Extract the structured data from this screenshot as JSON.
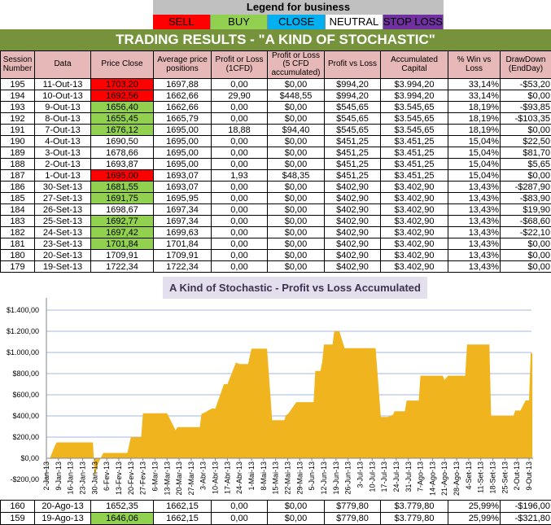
{
  "legend": {
    "title": "Legend for business",
    "items": [
      {
        "label": "SELL",
        "color": "#ff0000"
      },
      {
        "label": "BUY",
        "color": "#92d050"
      },
      {
        "label": "CLOSE",
        "color": "#00b0f0"
      },
      {
        "label": "NEUTRAL",
        "color": "#ffffff"
      },
      {
        "label": "STOP LOSS",
        "color": "#7030a0"
      }
    ]
  },
  "title": "TRADING RESULTS - \"A KIND OF STOCHASTIC\"",
  "columns": [
    "Session Number",
    "Data",
    "Price Close",
    "Average price positions",
    "Profit or Loss (1CFD)",
    "Profit or Loss (5 CFD accumulated)",
    "Profit vs Loss",
    "Accumulated Capital",
    "% Win vs Loss",
    "DrawDown (EndDay)"
  ],
  "rows": [
    [
      "195",
      "11-Out-13",
      "1703,20",
      "1697,88",
      "0,00",
      "$0,00",
      "$994,20",
      "$3.994,20",
      "33,14%",
      "-$53,20",
      "sell"
    ],
    [
      "194",
      "10-Out-13",
      "1692,56",
      "1662,66",
      "29,90",
      "$448,55",
      "$994,20",
      "$3.994,20",
      "33,14%",
      "$0,00",
      "sell"
    ],
    [
      "193",
      "9-Out-13",
      "1656,40",
      "1662,66",
      "0,00",
      "$0,00",
      "$545,65",
      "$3.545,65",
      "18,19%",
      "-$93,85",
      "buy"
    ],
    [
      "192",
      "8-Out-13",
      "1655,45",
      "1665,79",
      "0,00",
      "$0,00",
      "$545,65",
      "$3.545,65",
      "18,19%",
      "-$103,35",
      "buy"
    ],
    [
      "191",
      "7-Out-13",
      "1676,12",
      "1695,00",
      "18,88",
      "$94,40",
      "$545,65",
      "$3.545,65",
      "18,19%",
      "$0,00",
      "buy"
    ],
    [
      "190",
      "4-Out-13",
      "1690,50",
      "1695,00",
      "0,00",
      "$0,00",
      "$451,25",
      "$3.451,25",
      "15,04%",
      "$22,50",
      ""
    ],
    [
      "189",
      "3-Out-13",
      "1678,66",
      "1695,00",
      "0,00",
      "$0,00",
      "$451,25",
      "$3.451,25",
      "15,04%",
      "$81,70",
      ""
    ],
    [
      "188",
      "2-Out-13",
      "1693,87",
      "1695,00",
      "0,00",
      "$0,00",
      "$451,25",
      "$3.451,25",
      "15,04%",
      "$5,65",
      ""
    ],
    [
      "187",
      "1-Out-13",
      "1695,00",
      "1693,07",
      "1,93",
      "$48,35",
      "$451,25",
      "$3.451,25",
      "15,04%",
      "$0,00",
      "sell"
    ],
    [
      "186",
      "30-Set-13",
      "1681,55",
      "1693,07",
      "0,00",
      "$0,00",
      "$402,90",
      "$3.402,90",
      "13,43%",
      "-$287,90",
      "buy"
    ],
    [
      "185",
      "27-Set-13",
      "1691,75",
      "1695,95",
      "0,00",
      "$0,00",
      "$402,90",
      "$3.402,90",
      "13,43%",
      "-$83,90",
      "buy"
    ],
    [
      "184",
      "26-Set-13",
      "1698,67",
      "1697,34",
      "0,00",
      "$0,00",
      "$402,90",
      "$3.402,90",
      "13,43%",
      "$19,90",
      ""
    ],
    [
      "183",
      "25-Set-13",
      "1692,77",
      "1697,34",
      "0,00",
      "$0,00",
      "$402,90",
      "$3.402,90",
      "13,43%",
      "-$68,60",
      "buy"
    ],
    [
      "182",
      "24-Set-13",
      "1697,42",
      "1699,63",
      "0,00",
      "$0,00",
      "$402,90",
      "$3.402,90",
      "13,43%",
      "-$22,10",
      "buy"
    ],
    [
      "181",
      "23-Set-13",
      "1701,84",
      "1701,84",
      "0,00",
      "$0,00",
      "$402,90",
      "$3.402,90",
      "13,43%",
      "$0,00",
      "buy"
    ],
    [
      "180",
      "20-Set-13",
      "1709,91",
      "1709,91",
      "0,00",
      "$0,00",
      "$402,90",
      "$3.402,90",
      "13,43%",
      "$0,00",
      ""
    ],
    [
      "179",
      "19-Set-13",
      "1722,34",
      "1722,34",
      "0,00",
      "$0,00",
      "$402,90",
      "$3.402,90",
      "13,43%",
      "$0,00",
      ""
    ]
  ],
  "bottom_rows": [
    [
      "160",
      "20-Ago-13",
      "1652,35",
      "1662,15",
      "0,00",
      "$0,00",
      "$779,80",
      "$3.779,80",
      "25,99%",
      "-$196,00",
      ""
    ],
    [
      "159",
      "19-Ago-13",
      "1646,06",
      "1662,15",
      "0,00",
      "$0,00",
      "$779,80",
      "$3.779,80",
      "25,99%",
      "-$321,80",
      "buy"
    ]
  ],
  "chart_data": {
    "type": "area",
    "title": "A Kind of Stochastic - Profit vs Loss Accumulated",
    "color": "#f0b41e",
    "grid": true,
    "legend": "none",
    "ylim": [
      -200,
      1400
    ],
    "y_ticks": [
      "-$200,00",
      "$0,00",
      "$200,00",
      "$400,00",
      "$600,00",
      "$800,00",
      "$1.000,00",
      "$1.200,00",
      "$1.400,00"
    ],
    "x_ticks": [
      "2-Jan-13",
      "9-Jan-13",
      "16-Jan-13",
      "23-Jan-13",
      "30-Jan-13",
      "6-Fev-13",
      "13-Fev-13",
      "20-Fev-13",
      "27-Fev-13",
      "6-Mar-13",
      "13-Mar-13",
      "20-Mar-13",
      "27-Mar-13",
      "3-Abr-13",
      "10-Abr-13",
      "17-Abr-13",
      "24-Abr-13",
      "1-Mai-13",
      "8-Mai-13",
      "15-Mai-13",
      "22-Mai-13",
      "29-Mai-13",
      "5-Jun-13",
      "12-Jun-13",
      "19-Jun-13",
      "26-Jun-13",
      "3-Jul-13",
      "10-Jul-13",
      "17-Jul-13",
      "24-Jul-13",
      "31-Jul-13",
      "7-Ago-13",
      "14-Ago-13",
      "21-Ago-13",
      "28-Ago-13",
      "4-Set-13",
      "11-Set-13",
      "18-Set-13",
      "25-Set-13",
      "2-Out-13",
      "9-Out-13"
    ],
    "points": [
      [
        "2013-01-04",
        0
      ],
      [
        "2013-01-07",
        120
      ],
      [
        "2013-01-08",
        150
      ],
      [
        "2013-01-29",
        150
      ],
      [
        "2013-01-30",
        -170
      ],
      [
        "2013-02-01",
        -50
      ],
      [
        "2013-02-04",
        50
      ],
      [
        "2013-02-18",
        50
      ],
      [
        "2013-02-20",
        200
      ],
      [
        "2013-02-26",
        200
      ],
      [
        "2013-02-27",
        425
      ],
      [
        "2013-03-13",
        425
      ],
      [
        "2013-03-18",
        265
      ],
      [
        "2013-03-19",
        295
      ],
      [
        "2013-04-01",
        295
      ],
      [
        "2013-04-02",
        420
      ],
      [
        "2013-04-03",
        425
      ],
      [
        "2013-04-08",
        470
      ],
      [
        "2013-04-10",
        470
      ],
      [
        "2013-04-15",
        700
      ],
      [
        "2013-04-17",
        700
      ],
      [
        "2013-04-22",
        905
      ],
      [
        "2013-04-24",
        890
      ],
      [
        "2013-04-29",
        890
      ],
      [
        "2013-05-01",
        1035
      ],
      [
        "2013-05-10",
        1035
      ],
      [
        "2013-05-13",
        360
      ],
      [
        "2013-05-20",
        360
      ],
      [
        "2013-05-21",
        410
      ],
      [
        "2013-05-22",
        415
      ],
      [
        "2013-05-27",
        530
      ],
      [
        "2013-06-06",
        530
      ],
      [
        "2013-06-07",
        825
      ],
      [
        "2013-06-10",
        825
      ],
      [
        "2013-06-11",
        910
      ],
      [
        "2013-06-12",
        1075
      ],
      [
        "2013-06-17",
        1075
      ],
      [
        "2013-06-18",
        1200
      ],
      [
        "2013-06-21",
        1200
      ],
      [
        "2013-06-24",
        1040
      ],
      [
        "2013-07-12",
        1040
      ],
      [
        "2013-07-15",
        390
      ],
      [
        "2013-07-19",
        390
      ],
      [
        "2013-07-22",
        410
      ],
      [
        "2013-07-23",
        445
      ],
      [
        "2013-07-29",
        445
      ],
      [
        "2013-07-30",
        545
      ],
      [
        "2013-08-06",
        545
      ],
      [
        "2013-08-07",
        780
      ],
      [
        "2013-08-20",
        780
      ],
      [
        "2013-08-21",
        740
      ],
      [
        "2013-08-23",
        780
      ],
      [
        "2013-09-02",
        780
      ],
      [
        "2013-09-03",
        1075
      ],
      [
        "2013-09-16",
        1075
      ],
      [
        "2013-09-17",
        403
      ],
      [
        "2013-09-30",
        403
      ],
      [
        "2013-10-01",
        451
      ],
      [
        "2013-10-04",
        451
      ],
      [
        "2013-10-07",
        546
      ],
      [
        "2013-10-09",
        546
      ],
      [
        "2013-10-10",
        994
      ]
    ]
  }
}
